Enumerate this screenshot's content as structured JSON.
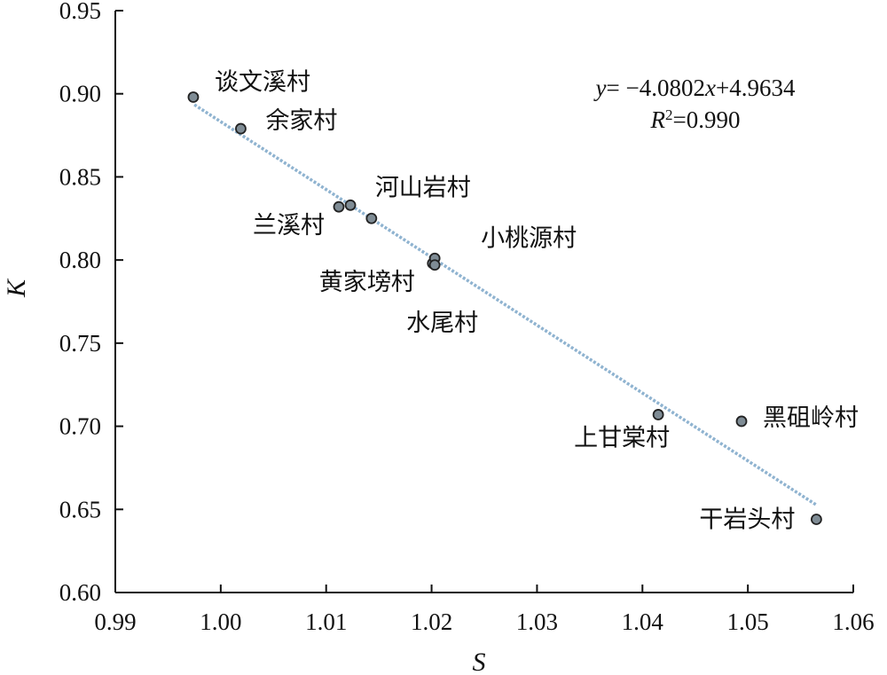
{
  "chart_data": {
    "type": "scatter",
    "title": "",
    "xlabel": "S",
    "ylabel": "K",
    "xlim": [
      0.99,
      1.06
    ],
    "ylim": [
      0.6,
      0.95
    ],
    "xticks": [
      "0.99",
      "1.00",
      "1.01",
      "1.02",
      "1.03",
      "1.04",
      "1.05",
      "1.06"
    ],
    "yticks": [
      "0.60",
      "0.65",
      "0.70",
      "0.75",
      "0.80",
      "0.85",
      "0.90",
      "0.95"
    ],
    "grid": false,
    "points": [
      {
        "label": "谈文溪村",
        "x": 0.9974,
        "y": 0.898
      },
      {
        "label": "余家村",
        "x": 1.0019,
        "y": 0.879
      },
      {
        "label": "兰溪村",
        "x": 1.0112,
        "y": 0.832
      },
      {
        "label": "",
        "x": 1.0123,
        "y": 0.833
      },
      {
        "label": "河山岩村",
        "x": 1.0143,
        "y": 0.825
      },
      {
        "label": "黄家塝村",
        "x": 1.0201,
        "y": 0.798
      },
      {
        "label": "小桃源村",
        "x": 1.0203,
        "y": 0.801
      },
      {
        "label": "水尾村",
        "x": 1.0203,
        "y": 0.797
      },
      {
        "label": "上甘棠村",
        "x": 1.0415,
        "y": 0.707
      },
      {
        "label": "黑砠岭村",
        "x": 1.0494,
        "y": 0.703
      },
      {
        "label": "干岩头村",
        "x": 1.0565,
        "y": 0.644
      }
    ],
    "trendline": {
      "slope": -4.0802,
      "intercept": 4.9634,
      "x_range": [
        0.9975,
        1.0565
      ],
      "color": "#8fb3d0"
    },
    "equation": {
      "y_var": "y",
      "eq_mid": "= −4.0802",
      "x_var": "x",
      "eq_tail": "+4.9634",
      "r_var": "R",
      "r_sup": "2",
      "r_tail": "=0.990"
    },
    "marker_color": "#7f8c95"
  }
}
